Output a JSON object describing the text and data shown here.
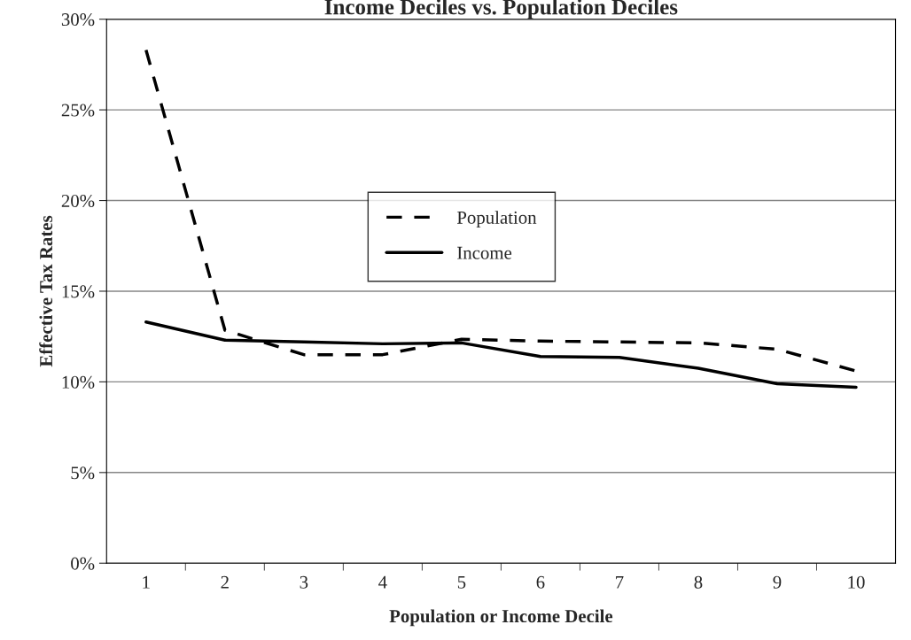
{
  "chart_data": {
    "type": "line",
    "title": "Income Deciles vs. Population Deciles",
    "xlabel": "Population or Income Decile",
    "ylabel": "Effective Tax Rates",
    "categories": [
      "1",
      "2",
      "3",
      "4",
      "5",
      "6",
      "7",
      "8",
      "9",
      "10"
    ],
    "series": [
      {
        "name": "Population",
        "color": "#000000",
        "line_style": "dashed",
        "values": [
          28.3,
          12.85,
          11.5,
          11.5,
          12.35,
          12.25,
          12.2,
          12.15,
          11.8,
          10.6
        ]
      },
      {
        "name": "Income",
        "color": "#000000",
        "line_style": "solid",
        "values": [
          13.3,
          12.3,
          12.2,
          12.1,
          12.15,
          11.4,
          11.35,
          10.75,
          9.9,
          9.7
        ]
      }
    ],
    "ylim": [
      0,
      30
    ],
    "yticks": [
      {
        "value": 0,
        "label": "0%"
      },
      {
        "value": 5,
        "label": "5%"
      },
      {
        "value": 10,
        "label": "10%"
      },
      {
        "value": 15,
        "label": "15%"
      },
      {
        "value": 20,
        "label": "20%"
      },
      {
        "value": 25,
        "label": "25%"
      },
      {
        "value": 30,
        "label": "30%"
      }
    ],
    "grid": "y",
    "legend": "center",
    "marker": "none"
  }
}
